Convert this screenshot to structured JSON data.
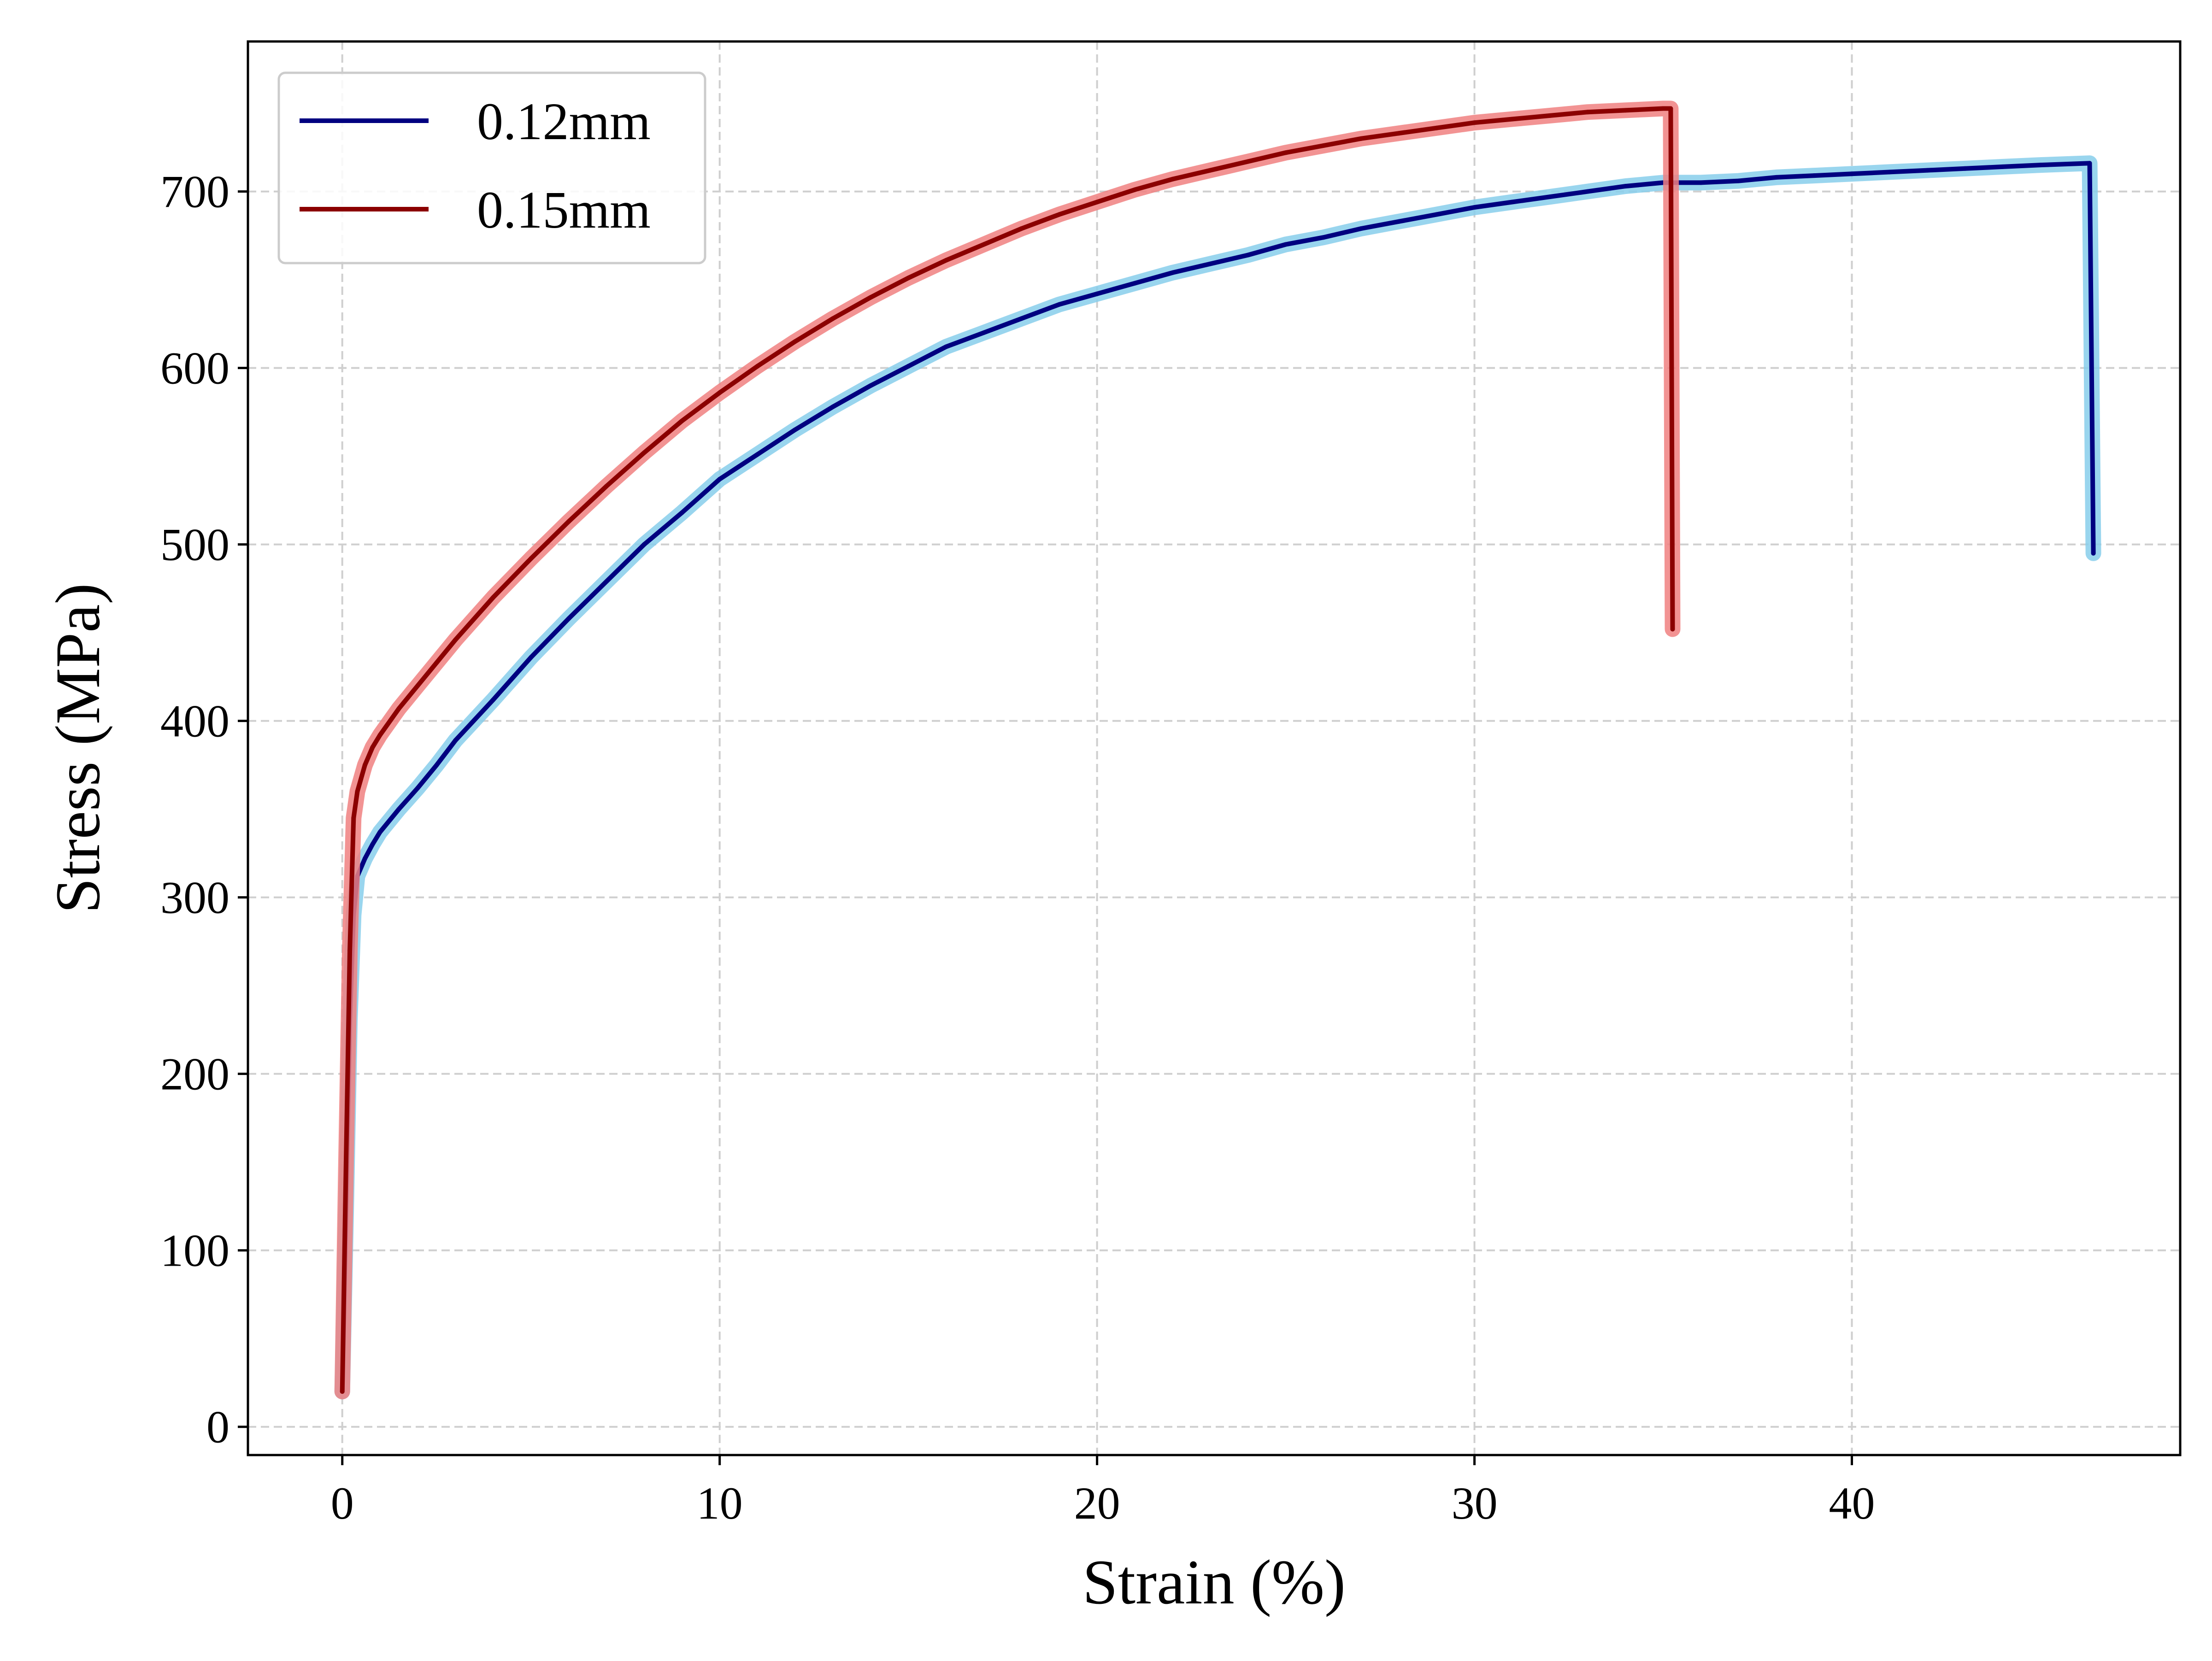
{
  "chart_data": {
    "type": "line",
    "title": "",
    "xlabel": "Strain (%)",
    "ylabel": "Stress (MPa)",
    "xlim": [
      -2.5,
      48.7
    ],
    "ylim": [
      -16,
      785
    ],
    "xticks": [
      0,
      10,
      20,
      30,
      40
    ],
    "yticks": [
      0,
      100,
      200,
      300,
      400,
      500,
      600,
      700
    ],
    "grid": true,
    "grid_style": "dashed",
    "legend_position": "top-left",
    "series": [
      {
        "name": "0.12mm",
        "line_color": "#000080",
        "band_color": "#87ceeb",
        "points": [
          [
            0,
            20
          ],
          [
            0.1,
            120
          ],
          [
            0.2,
            230
          ],
          [
            0.3,
            290
          ],
          [
            0.4,
            312
          ],
          [
            0.6,
            322
          ],
          [
            0.8,
            330
          ],
          [
            1,
            337
          ],
          [
            1.5,
            350
          ],
          [
            2,
            362
          ],
          [
            2.5,
            375
          ],
          [
            3,
            389
          ],
          [
            4,
            412
          ],
          [
            5,
            436
          ],
          [
            6,
            458
          ],
          [
            7,
            479
          ],
          [
            8,
            500
          ],
          [
            9,
            518
          ],
          [
            10,
            537
          ],
          [
            11,
            551
          ],
          [
            12,
            565
          ],
          [
            13,
            578
          ],
          [
            14,
            590
          ],
          [
            15,
            601
          ],
          [
            16,
            612
          ],
          [
            17,
            620
          ],
          [
            18,
            628
          ],
          [
            19,
            636
          ],
          [
            20,
            642
          ],
          [
            21,
            648
          ],
          [
            22,
            654
          ],
          [
            23,
            659
          ],
          [
            24,
            664
          ],
          [
            25,
            670
          ],
          [
            26,
            674
          ],
          [
            27,
            679
          ],
          [
            28,
            683
          ],
          [
            29,
            687
          ],
          [
            30,
            691
          ],
          [
            31,
            694
          ],
          [
            32,
            697
          ],
          [
            33,
            700
          ],
          [
            34,
            703
          ],
          [
            35,
            705
          ],
          [
            36,
            705
          ],
          [
            37,
            706
          ],
          [
            38,
            708
          ],
          [
            39,
            709
          ],
          [
            40,
            710
          ],
          [
            41,
            711
          ],
          [
            42,
            712
          ],
          [
            43,
            713
          ],
          [
            44,
            714
          ],
          [
            45,
            715
          ],
          [
            46.3,
            716
          ],
          [
            46.4,
            495
          ]
        ]
      },
      {
        "name": "0.15mm",
        "line_color": "#8b0000",
        "band_color": "#f08080",
        "points": [
          [
            0,
            20
          ],
          [
            0.1,
            150
          ],
          [
            0.2,
            270
          ],
          [
            0.3,
            345
          ],
          [
            0.4,
            360
          ],
          [
            0.6,
            375
          ],
          [
            0.8,
            385
          ],
          [
            1,
            392
          ],
          [
            1.5,
            407
          ],
          [
            2,
            420
          ],
          [
            2.5,
            433
          ],
          [
            3,
            446
          ],
          [
            4,
            470
          ],
          [
            5,
            492
          ],
          [
            6,
            513
          ],
          [
            7,
            533
          ],
          [
            8,
            552
          ],
          [
            9,
            570
          ],
          [
            10,
            586
          ],
          [
            11,
            601
          ],
          [
            12,
            615
          ],
          [
            13,
            628
          ],
          [
            14,
            640
          ],
          [
            15,
            651
          ],
          [
            16,
            661
          ],
          [
            17,
            670
          ],
          [
            18,
            679
          ],
          [
            19,
            687
          ],
          [
            20,
            694
          ],
          [
            21,
            701
          ],
          [
            22,
            707
          ],
          [
            23,
            712
          ],
          [
            24,
            717
          ],
          [
            25,
            722
          ],
          [
            26,
            726
          ],
          [
            27,
            730
          ],
          [
            28,
            733
          ],
          [
            29,
            736
          ],
          [
            30,
            739
          ],
          [
            31,
            741
          ],
          [
            32,
            743
          ],
          [
            33,
            745
          ],
          [
            34,
            746
          ],
          [
            35,
            747
          ],
          [
            35.2,
            747
          ],
          [
            35.25,
            452
          ]
        ]
      }
    ]
  }
}
